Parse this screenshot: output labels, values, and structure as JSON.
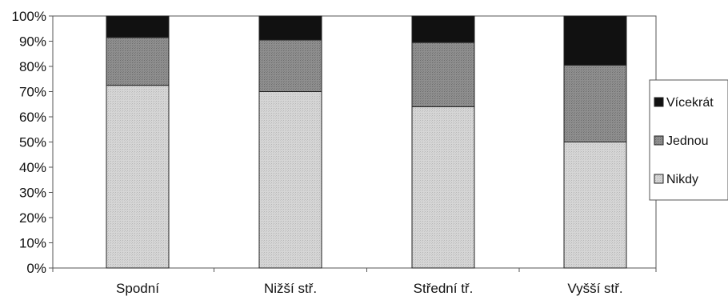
{
  "chart_data": {
    "type": "bar",
    "stacked": "percent",
    "categories": [
      "Spodní",
      "Nižší stř.",
      "Střední tř.",
      "Vyšší stř."
    ],
    "series": [
      {
        "name": "Nikdy",
        "values": [
          72.5,
          70,
          64,
          50
        ]
      },
      {
        "name": "Jednou",
        "values": [
          19,
          20.5,
          25.5,
          30.5
        ]
      },
      {
        "name": "Vícekrát",
        "values": [
          8.5,
          9.5,
          10.5,
          19.5
        ]
      }
    ],
    "y_tick_labels": [
      "0%",
      "10%",
      "20%",
      "30%",
      "40%",
      "50%",
      "60%",
      "70%",
      "80%",
      "90%",
      "100%"
    ],
    "ylim": [
      0,
      100
    ],
    "grid": false,
    "legend_position": "right",
    "legend_order": [
      "Vícekrát",
      "Jednou",
      "Nikdy"
    ],
    "colors": {
      "Nikdy": "#d2d2d2",
      "Jednou": "#8a8a8a",
      "Vícekrát": "#111111"
    }
  }
}
